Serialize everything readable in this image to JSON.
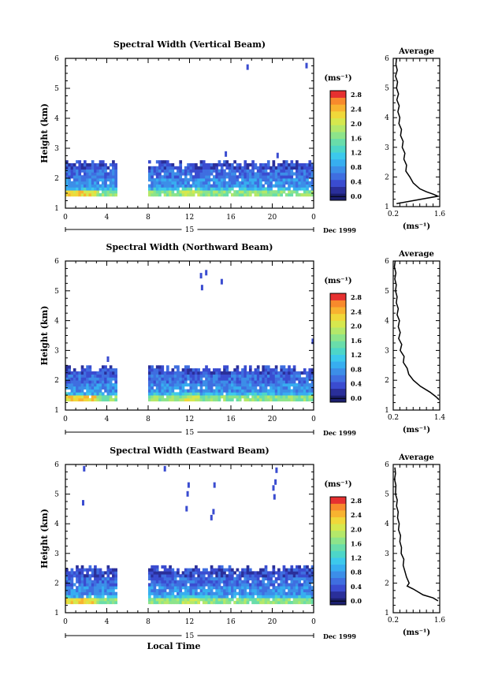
{
  "chart_data": [
    {
      "type": "heatmap",
      "title": "Spectral Width (Vertical Beam)",
      "ylabel": "Height (km)",
      "xlim": [
        0,
        24
      ],
      "ylim": [
        1,
        6
      ],
      "x_ticks": [
        "0",
        "4",
        "8",
        "12",
        "16",
        "20",
        "0"
      ],
      "y_ticks": [
        "1",
        "2",
        "3",
        "4",
        "5",
        "6"
      ],
      "day_label": "15",
      "date_label": "Dec 1999",
      "data_gaps_hours": [
        [
          5,
          8
        ]
      ],
      "field_height_range_km": [
        1.4,
        2.5
      ],
      "field_values_ms": [
        {
          "height_km": 1.45,
          "value": 1.9
        },
        {
          "height_km": 1.6,
          "value": 1.2
        },
        {
          "height_km": 1.8,
          "value": 0.9
        },
        {
          "height_km": 2.1,
          "value": 0.7
        },
        {
          "height_km": 2.4,
          "value": 0.5
        }
      ],
      "isolated_echoes": [
        {
          "hour": 17.5,
          "height_km": 5.7
        },
        {
          "hour": 23.2,
          "height_km": 5.75
        },
        {
          "hour": 15.4,
          "height_km": 2.8
        },
        {
          "hour": 20.4,
          "height_km": 2.75
        }
      ],
      "colorbar": {
        "unit": "(ms⁻¹)",
        "labels": [
          "0.0",
          "0.4",
          "0.8",
          "1.2",
          "1.6",
          "2.0",
          "2.4",
          "2.8"
        ]
      },
      "average": {
        "title": "Average",
        "xlabel": "(ms⁻¹)",
        "xlim": [
          0.2,
          1.6
        ],
        "x_ticks": [
          "0.2",
          "1.6"
        ],
        "y_ticks": [
          "1",
          "2",
          "3",
          "4",
          "5",
          "6"
        ],
        "profile": [
          [
            0.3,
            6.0
          ],
          [
            0.28,
            5.8
          ],
          [
            0.32,
            5.6
          ],
          [
            0.27,
            5.4
          ],
          [
            0.33,
            5.2
          ],
          [
            0.3,
            5.0
          ],
          [
            0.36,
            4.8
          ],
          [
            0.31,
            4.6
          ],
          [
            0.38,
            4.4
          ],
          [
            0.34,
            4.2
          ],
          [
            0.4,
            4.0
          ],
          [
            0.37,
            3.8
          ],
          [
            0.45,
            3.6
          ],
          [
            0.42,
            3.4
          ],
          [
            0.5,
            3.2
          ],
          [
            0.47,
            3.0
          ],
          [
            0.55,
            2.8
          ],
          [
            0.52,
            2.6
          ],
          [
            0.6,
            2.4
          ],
          [
            0.58,
            2.2
          ],
          [
            0.7,
            2.0
          ],
          [
            0.8,
            1.8
          ],
          [
            1.0,
            1.6
          ],
          [
            1.2,
            1.5
          ],
          [
            1.4,
            1.42
          ],
          [
            1.55,
            1.35
          ],
          [
            0.3,
            1.1
          ]
        ]
      }
    },
    {
      "type": "heatmap",
      "title": "Spectral Width (Northward Beam)",
      "ylabel": "Height (km)",
      "xlim": [
        0,
        24
      ],
      "ylim": [
        1,
        6
      ],
      "x_ticks": [
        "0",
        "4",
        "8",
        "12",
        "16",
        "20",
        "0"
      ],
      "y_ticks": [
        "1",
        "2",
        "3",
        "4",
        "5",
        "6"
      ],
      "day_label": "15",
      "date_label": "Dec 1999",
      "data_gaps_hours": [
        [
          5,
          8
        ]
      ],
      "field_height_range_km": [
        1.3,
        2.4
      ],
      "field_values_ms": [
        {
          "height_km": 1.35,
          "value": 1.9
        },
        {
          "height_km": 1.5,
          "value": 1.2
        },
        {
          "height_km": 1.7,
          "value": 0.9
        },
        {
          "height_km": 2.0,
          "value": 0.7
        },
        {
          "height_km": 2.3,
          "value": 0.5
        }
      ],
      "isolated_echoes": [
        {
          "hour": 13.0,
          "height_km": 5.5
        },
        {
          "hour": 13.5,
          "height_km": 5.6
        },
        {
          "hour": 13.1,
          "height_km": 5.1
        },
        {
          "hour": 15.0,
          "height_km": 5.3
        },
        {
          "hour": 4.0,
          "height_km": 2.7
        },
        {
          "hour": 23.8,
          "height_km": 3.3
        }
      ],
      "colorbar": {
        "unit": "(ms⁻¹)",
        "labels": [
          "0.0",
          "0.4",
          "0.8",
          "1.2",
          "1.6",
          "2.0",
          "2.4",
          "2.8"
        ]
      },
      "average": {
        "title": "Average",
        "xlabel": "(ms⁻¹)",
        "xlim": [
          0.2,
          1.4
        ],
        "x_ticks": [
          "0.2",
          "1.4"
        ],
        "y_ticks": [
          "1",
          "2",
          "3",
          "4",
          "5",
          "6"
        ],
        "profile": [
          [
            0.25,
            6.0
          ],
          [
            0.23,
            5.8
          ],
          [
            0.27,
            5.6
          ],
          [
            0.24,
            5.4
          ],
          [
            0.28,
            5.2
          ],
          [
            0.26,
            5.0
          ],
          [
            0.3,
            4.8
          ],
          [
            0.28,
            4.6
          ],
          [
            0.33,
            4.4
          ],
          [
            0.3,
            4.2
          ],
          [
            0.36,
            4.0
          ],
          [
            0.33,
            3.8
          ],
          [
            0.38,
            3.6
          ],
          [
            0.34,
            3.4
          ],
          [
            0.42,
            3.2
          ],
          [
            0.38,
            3.0
          ],
          [
            0.48,
            2.8
          ],
          [
            0.46,
            2.6
          ],
          [
            0.56,
            2.4
          ],
          [
            0.6,
            2.2
          ],
          [
            0.72,
            2.0
          ],
          [
            0.9,
            1.8
          ],
          [
            1.15,
            1.6
          ],
          [
            1.3,
            1.45
          ],
          [
            1.38,
            1.35
          ]
        ]
      }
    },
    {
      "type": "heatmap",
      "title": "Spectral Width (Eastward Beam)",
      "ylabel": "Height (km)",
      "xlabel": "Local Time",
      "xlim": [
        0,
        24
      ],
      "ylim": [
        1,
        6
      ],
      "x_ticks": [
        "0",
        "4",
        "8",
        "12",
        "16",
        "20",
        "0"
      ],
      "y_ticks": [
        "1",
        "2",
        "3",
        "4",
        "5",
        "6"
      ],
      "day_label": "15",
      "date_label": "Dec 1999",
      "data_gaps_hours": [
        [
          5,
          8
        ]
      ],
      "field_height_range_km": [
        1.3,
        2.5
      ],
      "field_values_ms": [
        {
          "height_km": 1.35,
          "value": 1.9
        },
        {
          "height_km": 1.5,
          "value": 1.2
        },
        {
          "height_km": 1.7,
          "value": 0.9
        },
        {
          "height_km": 2.0,
          "value": 0.7
        },
        {
          "height_km": 2.3,
          "value": 0.5
        }
      ],
      "isolated_echoes": [
        {
          "hour": 1.7,
          "height_km": 5.85
        },
        {
          "hour": 1.6,
          "height_km": 4.7
        },
        {
          "hour": 9.5,
          "height_km": 5.85
        },
        {
          "hour": 11.8,
          "height_km": 5.3
        },
        {
          "hour": 11.7,
          "height_km": 5.0
        },
        {
          "hour": 11.6,
          "height_km": 4.5
        },
        {
          "hour": 14.3,
          "height_km": 5.3
        },
        {
          "hour": 14.2,
          "height_km": 4.4
        },
        {
          "hour": 14.0,
          "height_km": 4.2
        },
        {
          "hour": 20.3,
          "height_km": 5.8
        },
        {
          "hour": 20.2,
          "height_km": 5.4
        },
        {
          "hour": 20.0,
          "height_km": 5.2
        },
        {
          "hour": 20.1,
          "height_km": 4.9
        }
      ],
      "colorbar": {
        "unit": "(ms⁻¹)",
        "labels": [
          "0.0",
          "0.4",
          "0.8",
          "1.2",
          "1.6",
          "2.0",
          "2.4",
          "2.8"
        ]
      },
      "average": {
        "title": "Average",
        "xlabel": "(ms⁻¹)",
        "xlim": [
          0.2,
          1.6
        ],
        "x_ticks": [
          "0.2",
          "1.6"
        ],
        "y_ticks": [
          "1",
          "2",
          "3",
          "4",
          "5",
          "6"
        ],
        "profile": [
          [
            0.25,
            5.9
          ],
          [
            0.27,
            5.7
          ],
          [
            0.24,
            5.5
          ],
          [
            0.28,
            5.3
          ],
          [
            0.27,
            5.0
          ],
          [
            0.32,
            4.8
          ],
          [
            0.3,
            4.6
          ],
          [
            0.35,
            4.4
          ],
          [
            0.33,
            4.2
          ],
          [
            0.38,
            4.0
          ],
          [
            0.36,
            3.8
          ],
          [
            0.42,
            3.6
          ],
          [
            0.4,
            3.4
          ],
          [
            0.45,
            3.2
          ],
          [
            0.44,
            3.0
          ],
          [
            0.52,
            2.8
          ],
          [
            0.5,
            2.6
          ],
          [
            0.55,
            2.4
          ],
          [
            0.6,
            2.2
          ],
          [
            0.68,
            2.0
          ],
          [
            0.62,
            1.9
          ],
          [
            0.8,
            1.8
          ],
          [
            1.1,
            1.6
          ],
          [
            1.4,
            1.5
          ],
          [
            1.55,
            1.4
          ]
        ]
      }
    }
  ],
  "colormap": [
    "#1b1f6e",
    "#2a2f9a",
    "#3a4cd0",
    "#3f6ee0",
    "#3c8ee8",
    "#37aef0",
    "#3cc9ec",
    "#4dd6c8",
    "#69ddaa",
    "#8de48a",
    "#b4e86a",
    "#d6e84e",
    "#f0d83a",
    "#f8b330",
    "#f88a2c",
    "#f25a30",
    "#e63030"
  ],
  "colormap_label_colors": [
    "#1b1f6e",
    "#2a2f9a",
    "#3a4cd0",
    "#3f6ee0",
    "#3c8ee8",
    "#37aef0",
    "#3cc9ec",
    "#4dd6c8",
    "#69ddaa",
    "#8de48a",
    "#b4e86a",
    "#d6e84e",
    "#f0d83a",
    "#f8b330",
    "#f88a2c",
    "#e63030"
  ]
}
